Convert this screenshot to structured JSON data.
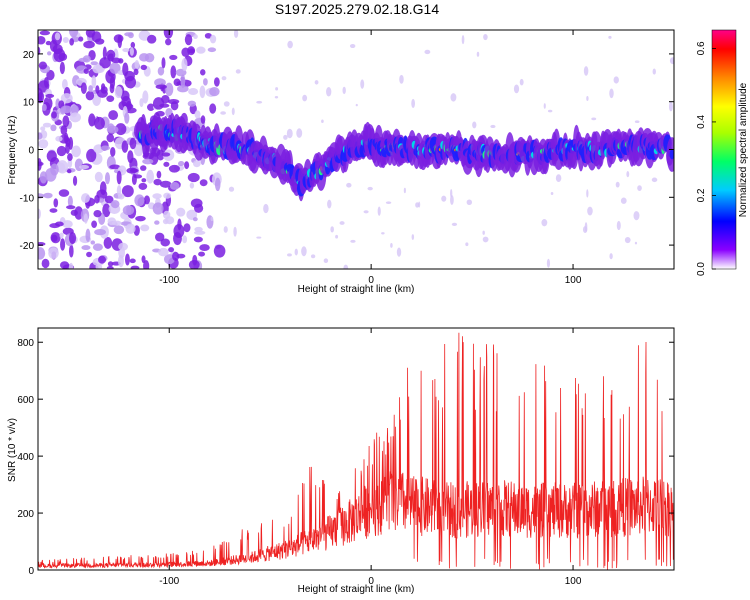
{
  "title": "S197.2025.279.02.18.G14",
  "chart_data": [
    {
      "type": "heatmap",
      "name": "spectrogram",
      "xlabel": "Height of straight line (km)",
      "ylabel": "Frequency (Hz)",
      "xlim": [
        -165,
        150
      ],
      "ylim": [
        -25,
        25
      ],
      "xticks": [
        -100,
        0,
        100
      ],
      "xtick_labels": [
        "-100",
        "0",
        "100"
      ],
      "yticks": [
        -20,
        -10,
        0,
        10,
        20
      ],
      "ytick_labels": [
        "-20",
        "-10",
        "0",
        "10",
        "20"
      ],
      "ridge_frequency_hz": [
        [
          -115,
          3
        ],
        [
          -100,
          4
        ],
        [
          -80,
          1
        ],
        [
          -60,
          0
        ],
        [
          -45,
          -3
        ],
        [
          -35,
          -7
        ],
        [
          -25,
          -4
        ],
        [
          -15,
          -1
        ],
        [
          0,
          1
        ],
        [
          20,
          0
        ],
        [
          40,
          0
        ],
        [
          60,
          -1
        ],
        [
          80,
          -1
        ],
        [
          100,
          0
        ],
        [
          120,
          0
        ],
        [
          135,
          1
        ],
        [
          150,
          0
        ]
      ],
      "colorbar": {
        "label": "Normalized spectral amplitude",
        "range": [
          0,
          0.65
        ],
        "ticks": [
          0.0,
          0.2,
          0.4,
          0.6
        ],
        "tick_labels": [
          "0.0",
          "0.2",
          "0.4",
          "0.6"
        ],
        "colors": [
          "#ffffff",
          "#8a00ff",
          "#0000ff",
          "#00ccff",
          "#00ff66",
          "#aaff00",
          "#ffff00",
          "#ff8800",
          "#ff0000",
          "#ff0088"
        ]
      }
    },
    {
      "type": "line",
      "name": "snr",
      "xlabel": "Height of straight line (km)",
      "ylabel": "SNR (10 * v/v)",
      "xlim": [
        -165,
        150
      ],
      "ylim": [
        0,
        850
      ],
      "xticks": [
        -100,
        0,
        100
      ],
      "xtick_labels": [
        "-100",
        "0",
        "100"
      ],
      "yticks": [
        0,
        200,
        400,
        600,
        800
      ],
      "ytick_labels": [
        "0",
        "200",
        "400",
        "600",
        "800"
      ],
      "color": "#ee2222",
      "envelope": {
        "x": [
          -165,
          -100,
          -80,
          -60,
          -40,
          -30,
          -20,
          -10,
          0,
          10,
          20,
          40,
          60,
          80,
          100,
          120,
          140,
          150
        ],
        "baseline": [
          15,
          20,
          25,
          45,
          80,
          110,
          140,
          180,
          230,
          260,
          240,
          220,
          230,
          220,
          220,
          230,
          240,
          230
        ],
        "peak": [
          35,
          60,
          80,
          160,
          200,
          380,
          300,
          360,
          480,
          520,
          800,
          850,
          820,
          740,
          740,
          700,
          850,
          700
        ]
      }
    }
  ]
}
